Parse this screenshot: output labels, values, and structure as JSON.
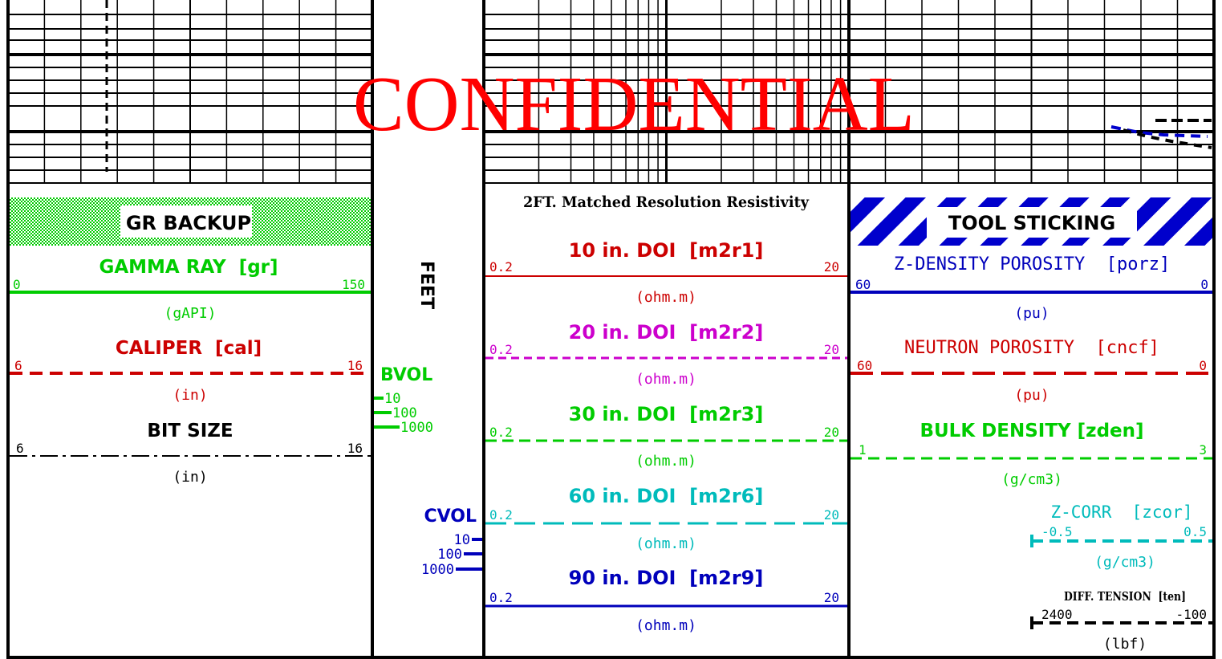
{
  "watermark": "CONFIDENTIAL",
  "colors": {
    "green": "#00cc00",
    "red": "#cc0000",
    "magenta": "#cc00cc",
    "cyan": "#00bbbb",
    "blue": "#0000bb",
    "black": "#000000"
  },
  "track1": {
    "banner": "GR BACKUP",
    "curves": [
      {
        "name": "GAMMA RAY  [gr]",
        "min": "0",
        "max": "150",
        "unit": "(gAPI)",
        "color": "green",
        "style": "solid"
      },
      {
        "name": "CALIPER  [cal]",
        "min": "6",
        "max": "16",
        "unit": "(in)",
        "color": "red",
        "style": "dashed"
      },
      {
        "name": "BIT SIZE",
        "min": "6",
        "max": "16",
        "unit": "(in)",
        "color": "black",
        "style": "dashdot"
      }
    ]
  },
  "depth_track": {
    "label": "FEET",
    "bvol": {
      "title": "BVOL",
      "ticks": [
        "10",
        "100",
        "1000"
      ]
    },
    "cvol": {
      "title": "CVOL",
      "ticks": [
        "10",
        "100",
        "1000"
      ]
    }
  },
  "track2": {
    "title": "2FT. Matched Resolution Resistivity",
    "curves": [
      {
        "name": "10 in. DOI  [m2r1]",
        "min": "0.2",
        "max": "20",
        "unit": "(ohm.m)",
        "color": "red",
        "style": "solid"
      },
      {
        "name": "20 in. DOI  [m2r2]",
        "min": "0.2",
        "max": "20",
        "unit": "(ohm.m)",
        "color": "magenta",
        "style": "dashed"
      },
      {
        "name": "30 in. DOI  [m2r3]",
        "min": "0.2",
        "max": "20",
        "unit": "(ohm.m)",
        "color": "green",
        "style": "dashed"
      },
      {
        "name": "60 in. DOI  [m2r6]",
        "min": "0.2",
        "max": "20",
        "unit": "(ohm.m)",
        "color": "cyan",
        "style": "longdash"
      },
      {
        "name": "90 in. DOI  [m2r9]",
        "min": "0.2",
        "max": "20",
        "unit": "(ohm.m)",
        "color": "blue",
        "style": "solid"
      }
    ]
  },
  "track3": {
    "banner": "TOOL STICKING",
    "curves": [
      {
        "name": "Z-DENSITY POROSITY  [porz]",
        "min": "60",
        "max": "0",
        "unit": "(pu)",
        "color": "blue",
        "style": "solid"
      },
      {
        "name": "NEUTRON POROSITY  [cncf]",
        "min": "60",
        "max": "0",
        "unit": "(pu)",
        "color": "red",
        "style": "longdash"
      },
      {
        "name": "BULK DENSITY [zden]",
        "min": "1",
        "max": "3",
        "unit": "(g/cm3)",
        "color": "green",
        "style": "dashed"
      }
    ],
    "zcorr": {
      "name": "Z-CORR  [zcor]",
      "min": "-0.5",
      "max": "0.5",
      "unit": "(g/cm3)"
    },
    "tension": {
      "name": "DIFF. TENSION  [ten]",
      "min": "2400",
      "max": "-100",
      "unit": "(lbf)"
    }
  }
}
